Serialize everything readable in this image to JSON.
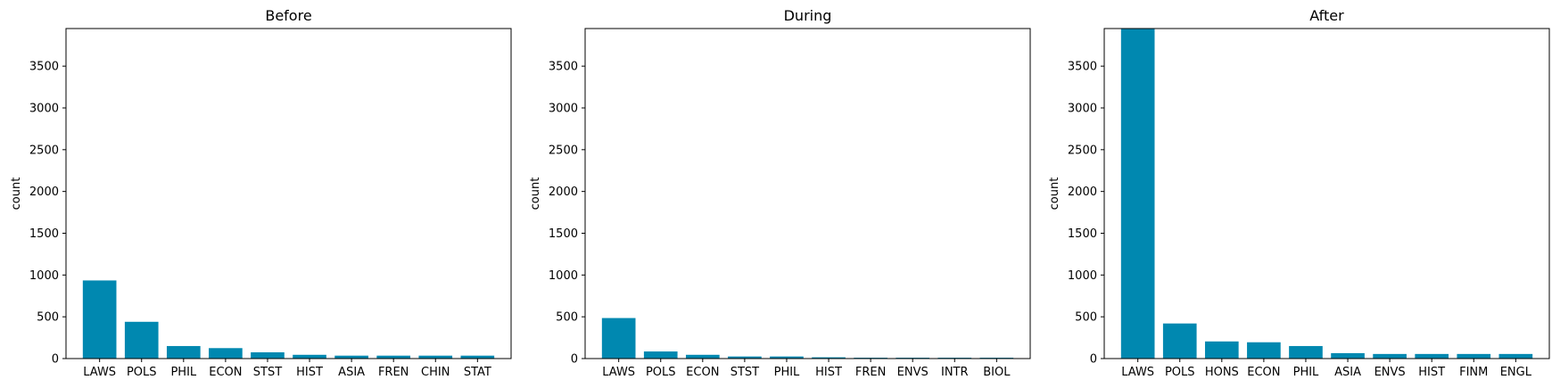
{
  "chart_data": [
    {
      "type": "bar",
      "title": "Before",
      "ylabel": "count",
      "xlabel": "",
      "ylim": [
        0,
        3950
      ],
      "yticks": [
        0,
        500,
        1000,
        1500,
        2000,
        2500,
        3000,
        3500
      ],
      "color": "#0088b0",
      "categories": [
        "LAWS",
        "POLS",
        "PHIL",
        "ECON",
        "STST",
        "HIST",
        "ASIA",
        "FREN",
        "CHIN",
        "STAT"
      ],
      "values": [
        935,
        440,
        150,
        125,
        75,
        45,
        35,
        35,
        35,
        35
      ]
    },
    {
      "type": "bar",
      "title": "During",
      "ylabel": "count",
      "xlabel": "",
      "ylim": [
        0,
        3950
      ],
      "yticks": [
        0,
        500,
        1000,
        1500,
        2000,
        2500,
        3000,
        3500
      ],
      "color": "#0088b0",
      "categories": [
        "LAWS",
        "POLS",
        "ECON",
        "STST",
        "PHIL",
        "HIST",
        "FREN",
        "ENVS",
        "INTR",
        "BIOL"
      ],
      "values": [
        485,
        85,
        45,
        25,
        25,
        15,
        10,
        10,
        10,
        10
      ]
    },
    {
      "type": "bar",
      "title": "After",
      "ylabel": "count",
      "xlabel": "",
      "ylim": [
        0,
        3950
      ],
      "yticks": [
        0,
        500,
        1000,
        1500,
        2000,
        2500,
        3000,
        3500
      ],
      "color": "#0088b0",
      "categories": [
        "LAWS",
        "POLS",
        "HONS",
        "ECON",
        "PHIL",
        "ASIA",
        "ENVS",
        "HIST",
        "FINM",
        "ENGL"
      ],
      "values": [
        3950,
        420,
        205,
        195,
        150,
        65,
        55,
        55,
        55,
        55
      ]
    }
  ]
}
